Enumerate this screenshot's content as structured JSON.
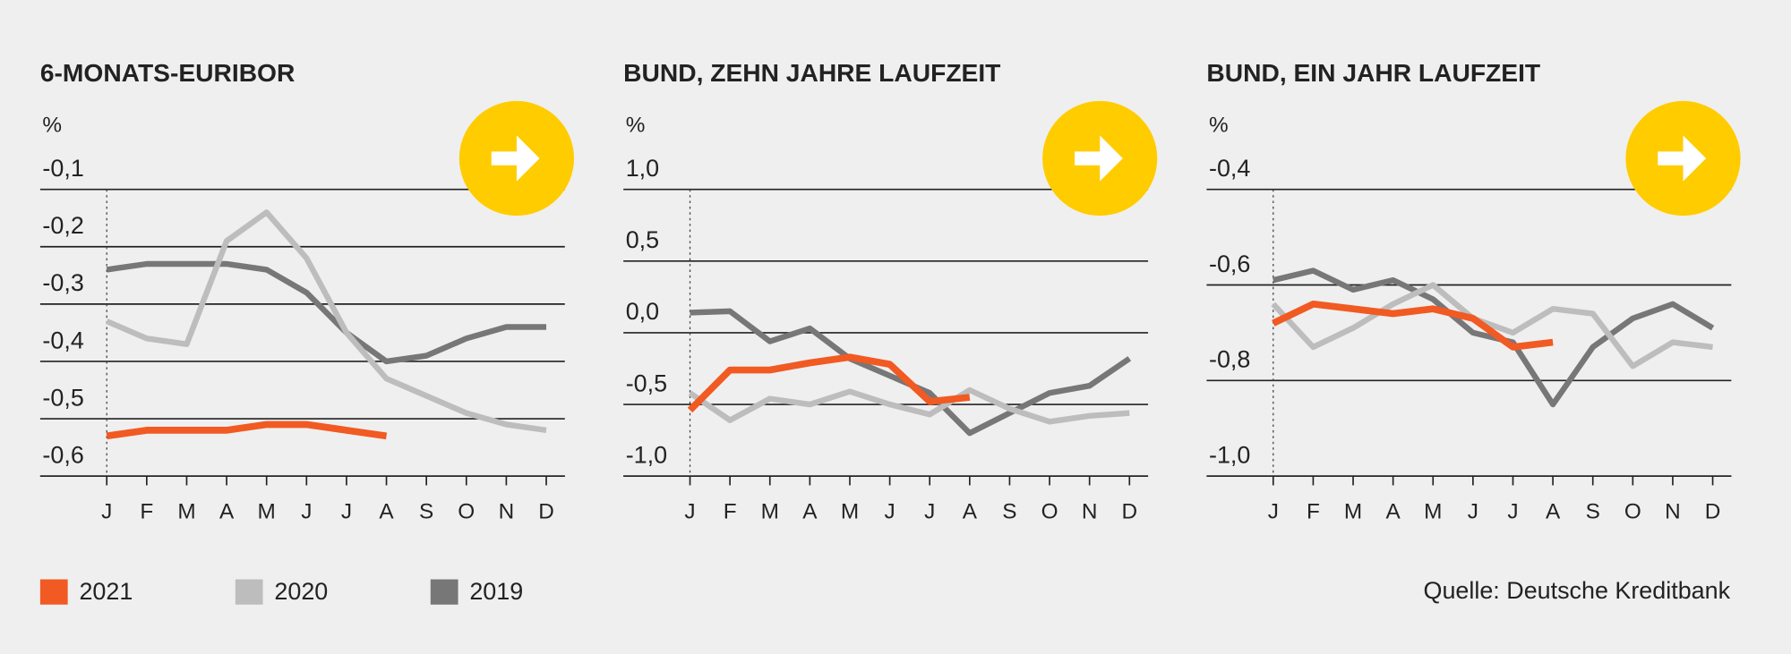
{
  "chart_data": [
    {
      "type": "line",
      "title": "6-MONATS-EURIBOR",
      "unit": "%",
      "categories": [
        "J",
        "F",
        "M",
        "A",
        "M",
        "J",
        "J",
        "A",
        "S",
        "O",
        "N",
        "D"
      ],
      "ylim": [
        -0.6,
        -0.1
      ],
      "yticks": [
        {
          "value": -0.1,
          "label": "-0,1"
        },
        {
          "value": -0.2,
          "label": "-0,2"
        },
        {
          "value": -0.3,
          "label": "-0,3"
        },
        {
          "value": -0.4,
          "label": "-0,4"
        },
        {
          "value": -0.5,
          "label": "-0,5"
        },
        {
          "value": -0.6,
          "label": "-0,6"
        }
      ],
      "grid": true,
      "series": [
        {
          "name": "2021",
          "color": "#f15a22",
          "values": [
            -0.53,
            -0.52,
            -0.52,
            -0.52,
            -0.51,
            -0.51,
            -0.52,
            -0.53,
            null,
            null,
            null,
            null
          ]
        },
        {
          "name": "2020",
          "color": "#bdbdbd",
          "values": [
            -0.33,
            -0.36,
            -0.37,
            -0.19,
            -0.14,
            -0.22,
            -0.35,
            -0.43,
            -0.46,
            -0.49,
            -0.51,
            -0.52
          ]
        },
        {
          "name": "2019",
          "color": "#777777",
          "values": [
            -0.24,
            -0.23,
            -0.23,
            -0.23,
            -0.24,
            -0.28,
            -0.35,
            -0.4,
            -0.39,
            -0.36,
            -0.34,
            -0.34
          ]
        }
      ]
    },
    {
      "type": "line",
      "title": "BUND, ZEHN JAHRE LAUFZEIT",
      "unit": "%",
      "categories": [
        "J",
        "F",
        "M",
        "A",
        "M",
        "J",
        "J",
        "A",
        "S",
        "O",
        "N",
        "D"
      ],
      "ylim": [
        -1.0,
        1.0
      ],
      "yticks": [
        {
          "value": 1.0,
          "label": "1,0"
        },
        {
          "value": 0.5,
          "label": "0,5"
        },
        {
          "value": 0.0,
          "label": "0,0"
        },
        {
          "value": -0.5,
          "label": "-0,5"
        },
        {
          "value": -1.0,
          "label": "-1,0"
        }
      ],
      "grid": true,
      "series": [
        {
          "name": "2021",
          "color": "#f15a22",
          "values": [
            -0.54,
            -0.26,
            -0.26,
            -0.21,
            -0.17,
            -0.22,
            -0.48,
            -0.45,
            null,
            null,
            null,
            null
          ]
        },
        {
          "name": "2020",
          "color": "#bdbdbd",
          "values": [
            -0.42,
            -0.61,
            -0.46,
            -0.5,
            -0.41,
            -0.5,
            -0.57,
            -0.4,
            -0.53,
            -0.62,
            -0.58,
            -0.56
          ]
        },
        {
          "name": "2019",
          "color": "#777777",
          "values": [
            0.14,
            0.15,
            -0.06,
            0.03,
            -0.18,
            -0.3,
            -0.42,
            -0.7,
            -0.56,
            -0.42,
            -0.37,
            -0.18
          ]
        }
      ]
    },
    {
      "type": "line",
      "title": "BUND, EIN JAHR LAUFZEIT",
      "unit": "%",
      "categories": [
        "J",
        "F",
        "M",
        "A",
        "M",
        "J",
        "J",
        "A",
        "S",
        "O",
        "N",
        "D"
      ],
      "ylim": [
        -1.0,
        -0.4
      ],
      "yticks": [
        {
          "value": -0.4,
          "label": "-0,4"
        },
        {
          "value": -0.6,
          "label": "-0,6"
        },
        {
          "value": -0.8,
          "label": "-0,8"
        },
        {
          "value": -1.0,
          "label": "-1,0"
        }
      ],
      "grid": true,
      "series": [
        {
          "name": "2021",
          "color": "#f15a22",
          "values": [
            -0.68,
            -0.64,
            -0.65,
            -0.66,
            -0.65,
            -0.67,
            -0.73,
            -0.72,
            null,
            null,
            null,
            null
          ]
        },
        {
          "name": "2020",
          "color": "#bdbdbd",
          "values": [
            -0.64,
            -0.73,
            -0.69,
            -0.64,
            -0.6,
            -0.67,
            -0.7,
            -0.65,
            -0.66,
            -0.77,
            -0.72,
            -0.73
          ]
        },
        {
          "name": "2019",
          "color": "#777777",
          "values": [
            -0.59,
            -0.57,
            -0.61,
            -0.59,
            -0.63,
            -0.7,
            -0.72,
            -0.85,
            -0.73,
            -0.67,
            -0.64,
            -0.69
          ]
        }
      ]
    }
  ],
  "source": "Quelle: Deutsche Kreditbank"
}
